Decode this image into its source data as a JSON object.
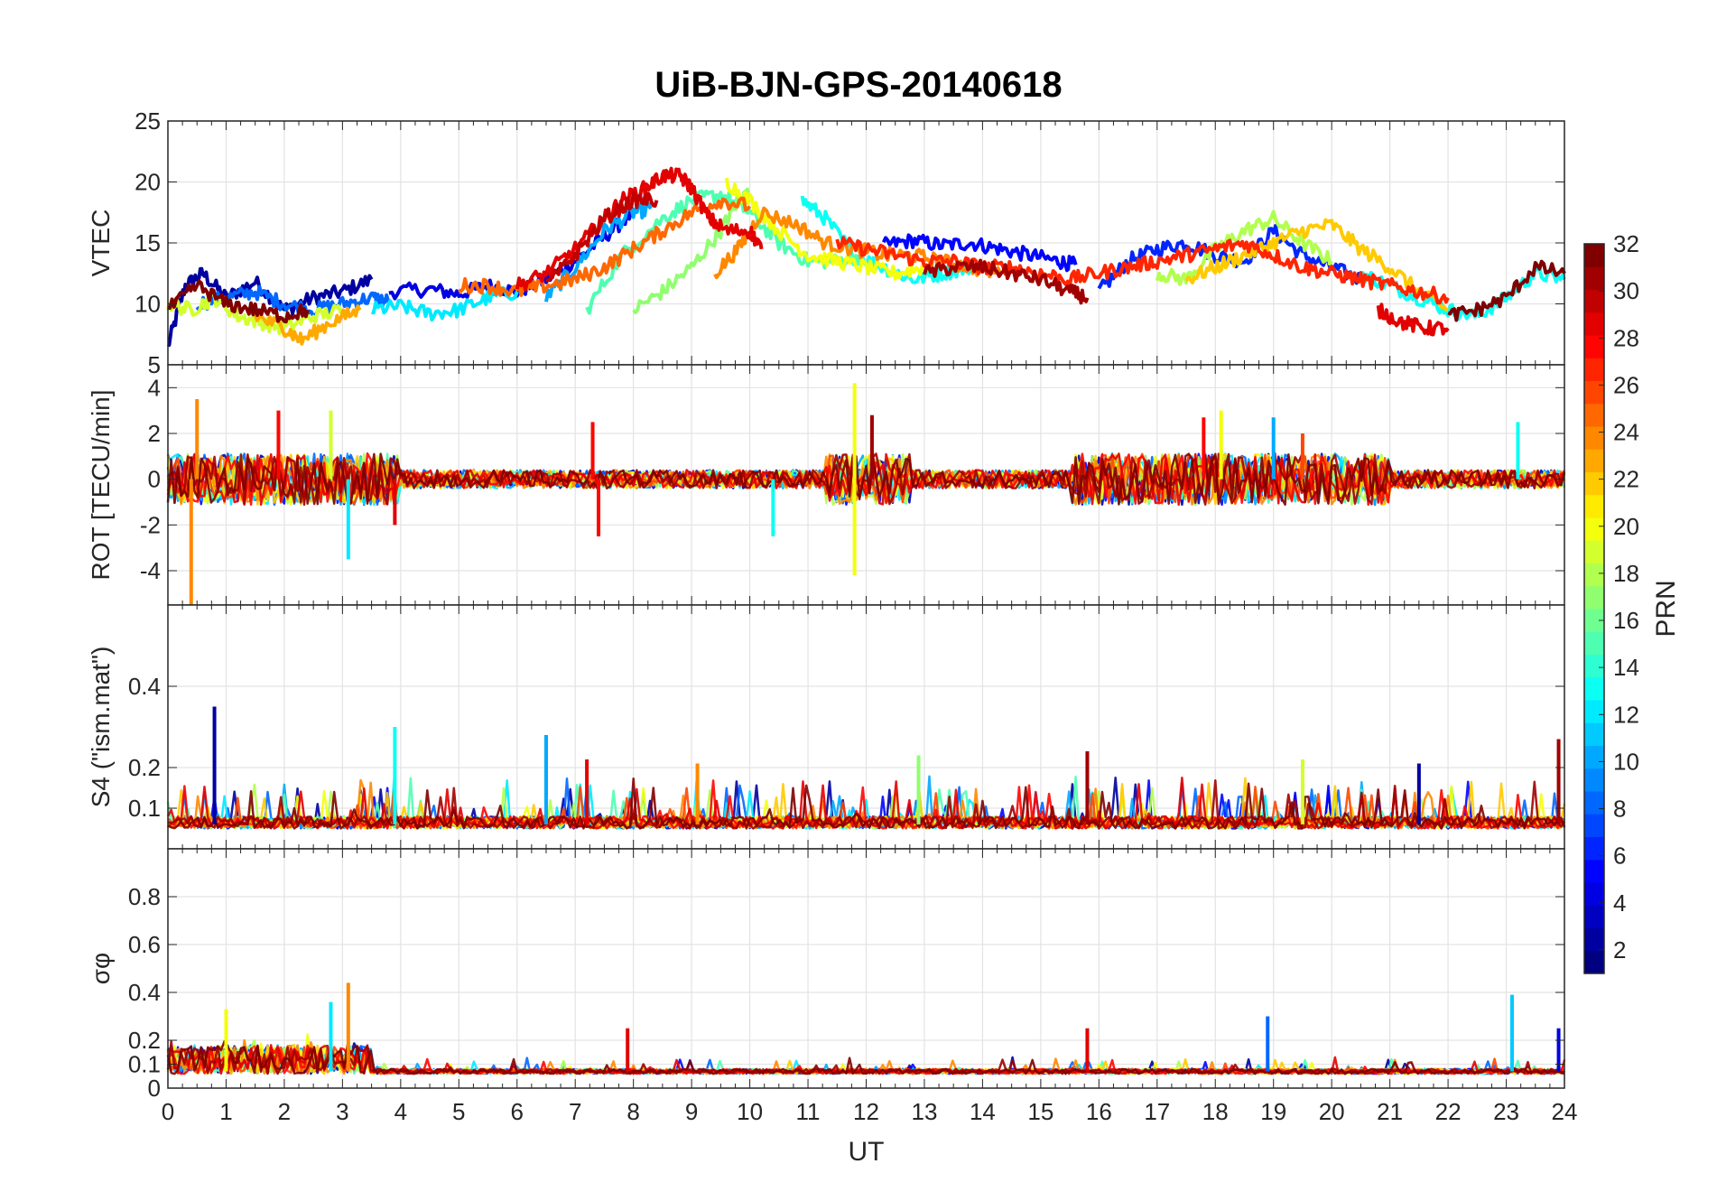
{
  "figure": {
    "title": "UiB-BJN-GPS-20140618",
    "x_label": "UT",
    "colorbar_label": "PRN"
  },
  "colorbar": {
    "range": [
      1,
      32
    ],
    "ticks": [
      2,
      4,
      6,
      8,
      10,
      12,
      14,
      16,
      18,
      20,
      22,
      24,
      26,
      28,
      30,
      32
    ],
    "colormap": "jet"
  },
  "chart_data": [
    {
      "type": "line",
      "panel": "vtec",
      "ylabel": "VTEC",
      "xlim": [
        0,
        24
      ],
      "ylim": [
        5,
        25
      ],
      "yticks": [
        5,
        10,
        15,
        20,
        25
      ],
      "xticks": [
        0,
        1,
        2,
        3,
        4,
        5,
        6,
        7,
        8,
        9,
        10,
        11,
        12,
        13,
        14,
        15,
        16,
        17,
        18,
        19,
        20,
        21,
        22,
        23,
        24
      ],
      "grid": true,
      "series_color_by": "PRN",
      "series": [
        {
          "prn": 2,
          "x": [
            0.0,
            0.3,
            0.6,
            1.0,
            1.5,
            2.0,
            2.5,
            3.0,
            3.5
          ],
          "y": [
            6.5,
            11.5,
            12.5,
            10.5,
            11.8,
            9.5,
            10.5,
            11.0,
            12.0
          ]
        },
        {
          "prn": 4,
          "x": [
            3.8,
            4.5,
            5.0,
            5.5,
            6.0,
            6.5,
            7.0,
            7.5,
            8.0
          ],
          "y": [
            11.0,
            11.2,
            10.8,
            11.5,
            11.0,
            12.0,
            13.5,
            15.5,
            17.5
          ]
        },
        {
          "prn": 5,
          "x": [
            12.3,
            12.8,
            13.3,
            13.8,
            14.3,
            14.8,
            15.3,
            15.6
          ],
          "y": [
            14.8,
            15.2,
            14.8,
            15.0,
            14.5,
            14.0,
            13.5,
            13.2
          ]
        },
        {
          "prn": 6,
          "x": [
            16.0,
            16.5,
            17.0,
            17.5,
            18.0,
            18.5,
            19.0,
            19.5,
            20.0,
            20.5
          ],
          "y": [
            11.0,
            13.5,
            14.5,
            15.0,
            14.0,
            13.5,
            16.0,
            14.0,
            13.0,
            12.0
          ]
        },
        {
          "prn": 8,
          "x": [
            0.5,
            1.0,
            1.5,
            2.0,
            2.5,
            3.0,
            3.5,
            3.8
          ],
          "y": [
            10.0,
            10.5,
            11.0,
            10.0,
            9.5,
            10.0,
            10.5,
            10.2
          ]
        },
        {
          "prn": 10,
          "x": [
            6.5,
            7.0,
            7.5,
            8.0,
            8.3
          ],
          "y": [
            10.5,
            13.0,
            16.0,
            17.5,
            17.8
          ]
        },
        {
          "prn": 12,
          "x": [
            3.5,
            4.0,
            4.5,
            5.0,
            5.5,
            6.0
          ],
          "y": [
            9.5,
            9.8,
            9.2,
            9.5,
            10.5,
            11.0
          ]
        },
        {
          "prn": 13,
          "x": [
            10.9,
            11.3,
            11.8,
            12.3,
            12.8,
            13.3,
            13.8
          ],
          "y": [
            18.5,
            17.0,
            14.0,
            13.0,
            12.0,
            12.5,
            13.0
          ]
        },
        {
          "prn": 13,
          "x": [
            20.5,
            21.0,
            21.5,
            22.0,
            22.5,
            23.0,
            23.5,
            24.0
          ],
          "y": [
            12.5,
            11.5,
            10.5,
            9.5,
            9.0,
            10.5,
            12.5,
            12.0
          ]
        },
        {
          "prn": 15,
          "x": [
            7.2,
            7.8,
            8.5,
            9.0,
            9.5,
            10.0,
            10.5,
            11.0,
            11.5,
            12.0
          ],
          "y": [
            9.5,
            14.0,
            17.0,
            18.5,
            19.0,
            17.5,
            15.0,
            13.5,
            13.5,
            14.0
          ]
        },
        {
          "prn": 17,
          "x": [
            8.0,
            8.5,
            9.0,
            9.5,
            9.8,
            10.0
          ],
          "y": [
            9.5,
            11.0,
            13.0,
            16.0,
            18.5,
            19.0
          ]
        },
        {
          "prn": 18,
          "x": [
            17.0,
            17.5,
            18.0,
            18.5,
            19.0,
            19.5,
            20.0
          ],
          "y": [
            12.5,
            12.0,
            14.5,
            16.0,
            17.0,
            15.0,
            13.5
          ]
        },
        {
          "prn": 19,
          "x": [
            0.0,
            0.4,
            0.8,
            1.2,
            1.6,
            2.0,
            2.5,
            3.0
          ],
          "y": [
            10.0,
            9.5,
            10.5,
            9.0,
            8.5,
            8.0,
            9.0,
            9.5
          ]
        },
        {
          "prn": 20,
          "x": [
            9.6,
            10.0,
            10.5,
            11.0,
            11.5,
            12.0,
            12.5,
            13.0
          ],
          "y": [
            20.0,
            18.5,
            16.0,
            14.0,
            13.5,
            13.0,
            12.5,
            13.0
          ]
        },
        {
          "prn": 22,
          "x": [
            17.5,
            18.0,
            18.5,
            19.0,
            19.5,
            20.0,
            20.5,
            21.0,
            21.5,
            22.0
          ],
          "y": [
            12.0,
            13.0,
            14.0,
            15.0,
            16.0,
            16.5,
            14.5,
            13.0,
            11.0,
            9.5
          ]
        },
        {
          "prn": 23,
          "x": [
            1.5,
            2.0,
            2.3,
            2.8,
            3.3
          ],
          "y": [
            9.0,
            8.0,
            7.0,
            8.5,
            9.5
          ]
        },
        {
          "prn": 24,
          "x": [
            9.4,
            9.8,
            10.2,
            10.8,
            11.3,
            11.8,
            12.3,
            12.8,
            13.3,
            13.8,
            14.3
          ],
          "y": [
            12.5,
            14.5,
            17.5,
            16.5,
            15.0,
            14.5,
            14.0,
            14.0,
            13.5,
            13.0,
            12.5
          ]
        },
        {
          "prn": 25,
          "x": [
            5.0,
            5.5,
            6.0,
            6.5,
            7.0,
            7.5,
            8.0,
            8.5,
            9.0,
            9.5,
            10.0
          ],
          "y": [
            11.5,
            11.5,
            11.0,
            11.5,
            12.0,
            13.0,
            14.5,
            16.0,
            17.5,
            18.5,
            18.0
          ]
        },
        {
          "prn": 27,
          "x": [
            11.5,
            12.0,
            12.5,
            13.0,
            13.5,
            14.0,
            14.5,
            15.0,
            15.5,
            16.0,
            16.5,
            17.0,
            17.5,
            18.0,
            18.5,
            19.0,
            19.5,
            20.0,
            20.5,
            21.0,
            21.5,
            22.0
          ],
          "y": [
            15.0,
            14.5,
            14.0,
            13.5,
            13.5,
            13.0,
            13.0,
            12.5,
            12.0,
            12.5,
            13.0,
            13.5,
            14.0,
            14.5,
            15.0,
            14.0,
            13.0,
            12.5,
            12.0,
            11.5,
            11.0,
            10.5
          ]
        },
        {
          "prn": 29,
          "x": [
            6.0,
            6.5,
            7.0,
            7.5,
            7.8,
            8.2,
            8.5,
            8.8,
            9.0,
            9.3,
            9.6,
            10.0,
            10.2
          ],
          "y": [
            11.5,
            12.5,
            14.5,
            17.0,
            18.5,
            19.5,
            20.5,
            20.5,
            19.5,
            17.0,
            16.0,
            16.0,
            14.5
          ]
        },
        {
          "prn": 29,
          "x": [
            20.8,
            21.2,
            21.6,
            22.0
          ],
          "y": [
            9.5,
            8.5,
            8.0,
            8.0
          ]
        },
        {
          "prn": 30,
          "x": [
            6.5,
            7.0,
            7.5,
            8.0,
            8.4
          ],
          "y": [
            11.5,
            14.0,
            17.0,
            18.5,
            18.5
          ]
        },
        {
          "prn": 31,
          "x": [
            13.0,
            13.5,
            14.0,
            14.5,
            15.0,
            15.5,
            15.8
          ],
          "y": [
            12.5,
            13.0,
            13.0,
            12.5,
            12.0,
            11.0,
            10.5
          ]
        },
        {
          "prn": 32,
          "x": [
            0.0,
            0.5,
            1.0,
            1.5,
            2.0,
            2.4
          ],
          "y": [
            9.5,
            11.5,
            10.0,
            9.5,
            9.0,
            9.5
          ]
        },
        {
          "prn": 32,
          "x": [
            22.0,
            22.5,
            23.0,
            23.5,
            24.0
          ],
          "y": [
            9.0,
            9.5,
            10.5,
            13.0,
            12.5
          ]
        }
      ]
    },
    {
      "type": "line",
      "panel": "rot",
      "ylabel": "ROT [TECU/min]",
      "xlim": [
        0,
        24
      ],
      "ylim": [
        -5.5,
        5
      ],
      "yticks": [
        -4,
        -2,
        0,
        2,
        4
      ],
      "grid": true,
      "description_values": {
        "typical_amplitude": 0.8,
        "max_spike": 4.2,
        "min_spike": -5.5
      },
      "spikes": [
        {
          "prn": 24,
          "x": 0.5,
          "y": 3.5
        },
        {
          "prn": 24,
          "x": 0.4,
          "y": -5.5
        },
        {
          "prn": 28,
          "x": 1.9,
          "y": 3.0
        },
        {
          "prn": 19,
          "x": 2.8,
          "y": 3.0
        },
        {
          "prn": 12,
          "x": 3.1,
          "y": -3.5
        },
        {
          "prn": 29,
          "x": 3.9,
          "y": -2.0
        },
        {
          "prn": 28,
          "x": 7.3,
          "y": 2.5
        },
        {
          "prn": 28,
          "x": 7.4,
          "y": -2.5
        },
        {
          "prn": 13,
          "x": 10.4,
          "y": -2.5
        },
        {
          "prn": 20,
          "x": 11.8,
          "y": 4.2
        },
        {
          "prn": 20,
          "x": 11.8,
          "y": -4.2
        },
        {
          "prn": 31,
          "x": 12.1,
          "y": 2.8
        },
        {
          "prn": 28,
          "x": 17.8,
          "y": 2.7
        },
        {
          "prn": 20,
          "x": 18.1,
          "y": 3.0
        },
        {
          "prn": 10,
          "x": 19.0,
          "y": 2.7
        },
        {
          "prn": 26,
          "x": 19.5,
          "y": 2.0
        },
        {
          "prn": 13,
          "x": 23.2,
          "y": 2.5
        }
      ]
    },
    {
      "type": "line",
      "panel": "s4",
      "ylabel": "S4 (\"ism.mat\")",
      "xlim": [
        0,
        24
      ],
      "ylim": [
        0,
        0.6
      ],
      "yticks": [
        0.1,
        0.2,
        0.4
      ],
      "grid": true,
      "spikes": [
        {
          "prn": 2,
          "x": 0.8,
          "y": 0.35
        },
        {
          "prn": 13,
          "x": 3.9,
          "y": 0.3
        },
        {
          "prn": 10,
          "x": 6.5,
          "y": 0.28
        },
        {
          "prn": 29,
          "x": 7.2,
          "y": 0.22
        },
        {
          "prn": 24,
          "x": 9.1,
          "y": 0.21
        },
        {
          "prn": 17,
          "x": 12.9,
          "y": 0.23
        },
        {
          "prn": 31,
          "x": 15.8,
          "y": 0.24
        },
        {
          "prn": 19,
          "x": 19.5,
          "y": 0.22
        },
        {
          "prn": 2,
          "x": 21.5,
          "y": 0.21
        },
        {
          "prn": 31,
          "x": 23.9,
          "y": 0.27
        }
      ]
    },
    {
      "type": "line",
      "panel": "sigma_phi",
      "ylabel": "σφ",
      "xlim": [
        0,
        24
      ],
      "ylim": [
        0,
        1
      ],
      "yticks": [
        0,
        0.1,
        0.2,
        0.4,
        0.6,
        0.8
      ],
      "xlabel": "UT",
      "grid": true,
      "spikes": [
        {
          "prn": 20,
          "x": 1.0,
          "y": 0.33
        },
        {
          "prn": 12,
          "x": 2.8,
          "y": 0.36
        },
        {
          "prn": 24,
          "x": 3.1,
          "y": 0.44
        },
        {
          "prn": 29,
          "x": 7.9,
          "y": 0.25
        },
        {
          "prn": 29,
          "x": 15.8,
          "y": 0.25
        },
        {
          "prn": 8,
          "x": 18.9,
          "y": 0.3
        },
        {
          "prn": 11,
          "x": 23.1,
          "y": 0.39
        },
        {
          "prn": 4,
          "x": 23.9,
          "y": 0.25
        }
      ]
    }
  ]
}
